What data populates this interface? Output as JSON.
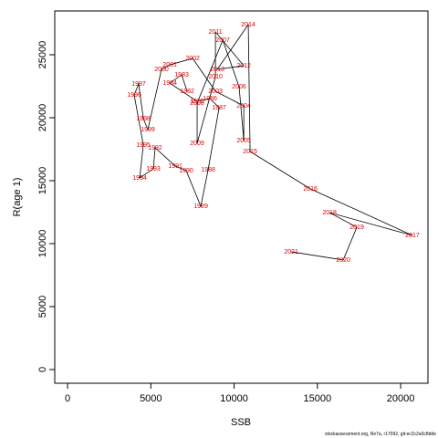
{
  "chart_data": {
    "type": "line",
    "x_label": "SSB",
    "y_label": "R(age 1)",
    "footnote": "stockassessment.org, Re7a, r17092, git:ec2c2a0c8dde",
    "line_color": "#000000",
    "label_color": "#e00000",
    "point_labels": [
      "1982",
      "1983",
      "1984",
      "1985",
      "1986",
      "1987",
      "1988",
      "1989",
      "1990",
      "1991",
      "1992",
      "1993",
      "1994",
      "1995",
      "1996",
      "1997",
      "1998",
      "1999",
      "2000",
      "2001",
      "2002",
      "2003",
      "2004",
      "2005",
      "2006",
      "2007",
      "2008",
      "2009",
      "2010",
      "2011",
      "2012",
      "2013",
      "2014",
      "2015",
      "2016",
      "2017",
      "2018",
      "2019",
      "2020",
      "2021"
    ],
    "x": [
      7180,
      6850,
      6140,
      7780,
      8550,
      9100,
      8440,
      8000,
      7120,
      6470,
      5260,
      5150,
      4330,
      4550,
      4000,
      4270,
      4550,
      4820,
      5640,
      6140,
      7510,
      8880,
      10580,
      10580,
      10300,
      9320,
      7780,
      7780,
      8880,
      8880,
      10580,
      8990,
      10850,
      10960,
      14580,
      20710,
      15730,
      17370,
      16550,
      13430
    ],
    "values": [
      22100,
      23400,
      22750,
      21300,
      21520,
      20800,
      15870,
      12970,
      15800,
      16160,
      17610,
      15940,
      15220,
      17830,
      21810,
      22680,
      19930,
      19060,
      23840,
      24200,
      24710,
      22100,
      20940,
      18190,
      22460,
      26160,
      21160,
      17970,
      23260,
      26810,
      24130,
      23840,
      27390,
      17320,
      14350,
      10650,
      12460,
      11300,
      8700,
      9350
    ],
    "xlim": [
      -770,
      21640
    ],
    "ylim": [
      -1090,
      28480
    ],
    "xticks": [
      0,
      5000,
      10000,
      15000,
      20000
    ],
    "yticks": [
      0,
      5000,
      10000,
      15000,
      20000,
      25000
    ]
  }
}
